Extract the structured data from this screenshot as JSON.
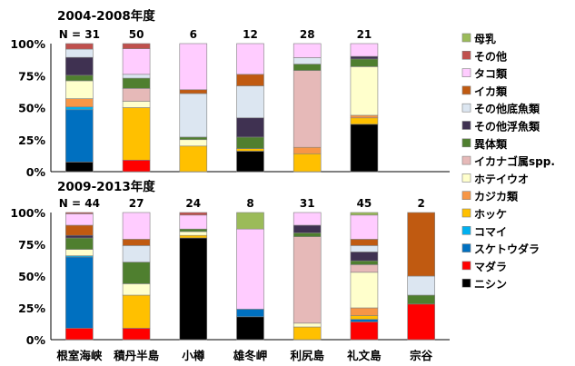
{
  "chart_data": {
    "type": "bar",
    "stacked": true,
    "normalized_percent": true,
    "ylim": [
      0,
      100
    ],
    "y_ticks": [
      "0%",
      "25%",
      "50%",
      "75%",
      "100%"
    ],
    "categories": [
      "根室海峡",
      "積丹半島",
      "小樽",
      "雄冬岬",
      "利尻島",
      "礼文島",
      "宗谷"
    ],
    "legend_position": "right",
    "series_order": [
      "ニシン",
      "マダラ",
      "スケトウダラ",
      "コマイ",
      "ホッケ",
      "カジカ類",
      "ホテイウオ",
      "イカナゴ属spp.",
      "異体類",
      "その他浮魚類",
      "その他底魚類",
      "イカ類",
      "タコ類",
      "その他",
      "母乳"
    ],
    "legend_order": [
      "母乳",
      "その他",
      "タコ類",
      "イカ類",
      "その他底魚類",
      "その他浮魚類",
      "異体類",
      "イカナゴ属spp.",
      "ホテイウオ",
      "カジカ類",
      "ホッケ",
      "コマイ",
      "スケトウダラ",
      "マダラ",
      "ニシン"
    ],
    "colors": {
      "ニシン": "#000000",
      "マダラ": "#ff0000",
      "スケトウダラ": "#0070c0",
      "コマイ": "#00b0f0",
      "ホッケ": "#ffc000",
      "カジカ類": "#f79646",
      "ホテイウオ": "#ffffcc",
      "イカナゴ属spp.": "#e6b9b8",
      "異体類": "#4f7f2f",
      "その他浮魚類": "#3f3151",
      "その他底魚類": "#dce6f1",
      "イカ類": "#c05a11",
      "タコ類": "#ffccff",
      "その他": "#c0504d",
      "母乳": "#9bbb59"
    },
    "panels": [
      {
        "title": "2004-2008年度",
        "n_labels": [
          "N = 31",
          "50",
          "6",
          "12",
          "28",
          "21",
          ""
        ],
        "data": [
          {
            "ニシン": 7,
            "マダラ": 0,
            "スケトウダラ": 38,
            "コマイ": 2,
            "ホッケ": 0,
            "カジカ類": 6,
            "ホテイウオ": 13,
            "イカナゴ属spp.": 0,
            "異体類": 4,
            "その他浮魚類": 13,
            "その他底魚類": 6,
            "イカ類": 0,
            "タコ類": 0,
            "その他": 4,
            "母乳": 0
          },
          {
            "ニシン": 0,
            "マダラ": 9,
            "スケトウダラ": 0,
            "コマイ": 0,
            "ホッケ": 41,
            "カジカ類": 0,
            "ホテイウオ": 5,
            "イカナゴ属spp.": 10,
            "異体類": 8,
            "その他浮魚類": 0,
            "その他底魚類": 3,
            "イカ類": 0,
            "タコ類": 20,
            "その他": 4,
            "母乳": 0
          },
          {
            "ニシン": 0,
            "マダラ": 0,
            "スケトウダラ": 0,
            "コマイ": 0,
            "ホッケ": 20,
            "カジカ類": 0,
            "ホテイウオ": 5,
            "イカナゴ属spp.": 0,
            "異体類": 2,
            "その他浮魚類": 0,
            "その他底魚類": 34,
            "イカ類": 3,
            "タコ類": 36,
            "その他": 0,
            "母乳": 0
          },
          {
            "ニシン": 16,
            "マダラ": 0,
            "スケトウダラ": 0,
            "コマイ": 0,
            "ホッケ": 2,
            "カジカ類": 0,
            "ホテイウオ": 0,
            "イカナゴ属spp.": 0,
            "異体類": 9,
            "その他浮魚類": 15,
            "その他底魚類": 25,
            "イカ類": 9,
            "タコ類": 24,
            "その他": 0,
            "母乳": 0
          },
          {
            "ニシン": 0,
            "マダラ": 0,
            "スケトウダラ": 0,
            "コマイ": 0,
            "ホッケ": 14,
            "カジカ類": 5,
            "ホテイウオ": 0,
            "イカナゴ属spp.": 60,
            "異体類": 5,
            "その他浮魚類": 0,
            "その他底魚類": 5,
            "イカ類": 0,
            "タコ類": 11,
            "その他": 0,
            "母乳": 0
          },
          {
            "ニシン": 37,
            "マダラ": 0,
            "スケトウダラ": 0,
            "コマイ": 0,
            "ホッケ": 5,
            "カジカ類": 2,
            "ホテイウオ": 38,
            "イカナゴ属spp.": 0,
            "異体類": 6,
            "その他浮魚類": 2,
            "その他底魚類": 0,
            "イカ類": 0,
            "タコ類": 10,
            "その他": 0,
            "母乳": 0
          },
          null
        ]
      },
      {
        "title": "2009-2013年度",
        "n_labels": [
          "N = 44",
          "27",
          "24",
          "8",
          "31",
          "45",
          "2"
        ],
        "data": [
          {
            "ニシン": 0,
            "マダラ": 9,
            "スケトウダラ": 56,
            "コマイ": 1,
            "ホッケ": 0,
            "カジカ類": 0,
            "ホテイウオ": 5,
            "イカナゴ属spp.": 0,
            "異体類": 9,
            "その他浮魚類": 2,
            "その他底魚類": 0,
            "イカ類": 8,
            "タコ類": 9,
            "その他": 1,
            "母乳": 0
          },
          {
            "ニシン": 0,
            "マダラ": 9,
            "スケトウダラ": 0,
            "コマイ": 0,
            "ホッケ": 26,
            "カジカ類": 0,
            "ホテイウオ": 9,
            "イカナゴ属spp.": 0,
            "異体類": 17,
            "その他浮魚類": 0,
            "その他底魚類": 13,
            "イカ類": 5,
            "タコ類": 21,
            "その他": 0,
            "母乳": 0
          },
          {
            "ニシン": 80,
            "マダラ": 0,
            "スケトウダラ": 0,
            "コマイ": 0,
            "ホッケ": 2,
            "カジカ類": 0,
            "ホテイウオ": 3,
            "イカナゴ属spp.": 0,
            "異体類": 2,
            "その他浮魚類": 0,
            "その他底魚類": 0,
            "イカ類": 0,
            "タコ類": 11,
            "その他": 2,
            "母乳": 0
          },
          {
            "ニシン": 18,
            "マダラ": 0,
            "スケトウダラ": 6,
            "コマイ": 0,
            "ホッケ": 0,
            "カジカ類": 0,
            "ホテイウオ": 0,
            "イカナゴ属spp.": 0,
            "異体類": 0,
            "その他浮魚類": 0,
            "その他底魚類": 0,
            "イカ類": 0,
            "タコ類": 63,
            "その他": 0,
            "母乳": 13
          },
          {
            "ニシン": 0,
            "マダラ": 0,
            "スケトウダラ": 0,
            "コマイ": 0,
            "ホッケ": 10,
            "カジカ類": 0,
            "ホテイウオ": 3,
            "イカナゴ属spp.": 68,
            "異体類": 3,
            "その他浮魚類": 6,
            "その他底魚類": 0,
            "イカ類": 0,
            "タコ類": 10,
            "その他": 0,
            "母乳": 0
          },
          {
            "ニシン": 0,
            "マダラ": 14,
            "スケトウダラ": 2,
            "コマイ": 0,
            "ホッケ": 3,
            "カジカ類": 6,
            "ホテイウオ": 28,
            "イカナゴ属spp.": 6,
            "異体類": 3,
            "その他浮魚類": 7,
            "その他底魚類": 5,
            "イカ類": 5,
            "タコ類": 19,
            "その他": 0,
            "母乳": 2
          },
          {
            "ニシン": 0,
            "マダラ": 28,
            "スケトウダラ": 0,
            "コマイ": 0,
            "ホッケ": 0,
            "カジカ類": 0,
            "ホテイウオ": 0,
            "イカナゴ属spp.": 0,
            "異体類": 7,
            "その他浮魚類": 0,
            "その他底魚類": 15,
            "イカ類": 50,
            "タコ類": 0,
            "その他": 0,
            "母乳": 0
          }
        ]
      }
    ]
  }
}
